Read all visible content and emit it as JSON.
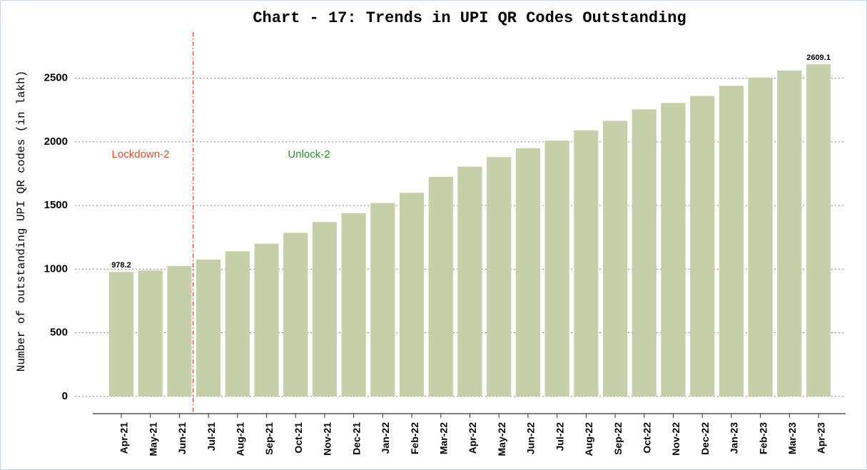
{
  "chart_data": {
    "type": "bar",
    "title": "Chart - 17: Trends in UPI QR Codes Outstanding",
    "y_label": "Number of outstanding UPI QR codes (in lakh)",
    "categories": [
      "Apr-21",
      "May-21",
      "Jun-21",
      "Jul-21",
      "Aug-21",
      "Sep-21",
      "Oct-21",
      "Nov-21",
      "Dec-21",
      "Jan-22",
      "Feb-22",
      "Mar-22",
      "Apr-22",
      "May-22",
      "Jun-22",
      "Jul-22",
      "Aug-22",
      "Sep-22",
      "Oct-22",
      "Nov-22",
      "Dec-22",
      "Jan-23",
      "Feb-23",
      "Mar-23",
      "Apr-23"
    ],
    "values": [
      978.2,
      990,
      1025,
      1075,
      1140,
      1200,
      1285,
      1370,
      1440,
      1520,
      1600,
      1725,
      1805,
      1880,
      1950,
      2010,
      2090,
      2165,
      2255,
      2305,
      2360,
      2440,
      2505,
      2560,
      2609.1
    ],
    "color": "#c5d0a9",
    "ylim": [
      -135,
      2890
    ],
    "yticks": [
      0,
      500,
      1000,
      1500,
      2000,
      2500
    ],
    "grid": true,
    "annotations": [
      {
        "text": "Lockdown-2",
        "color": "#e8482f"
      },
      {
        "text": "Unlock-2",
        "color": "#2e8b2e"
      }
    ]
  }
}
